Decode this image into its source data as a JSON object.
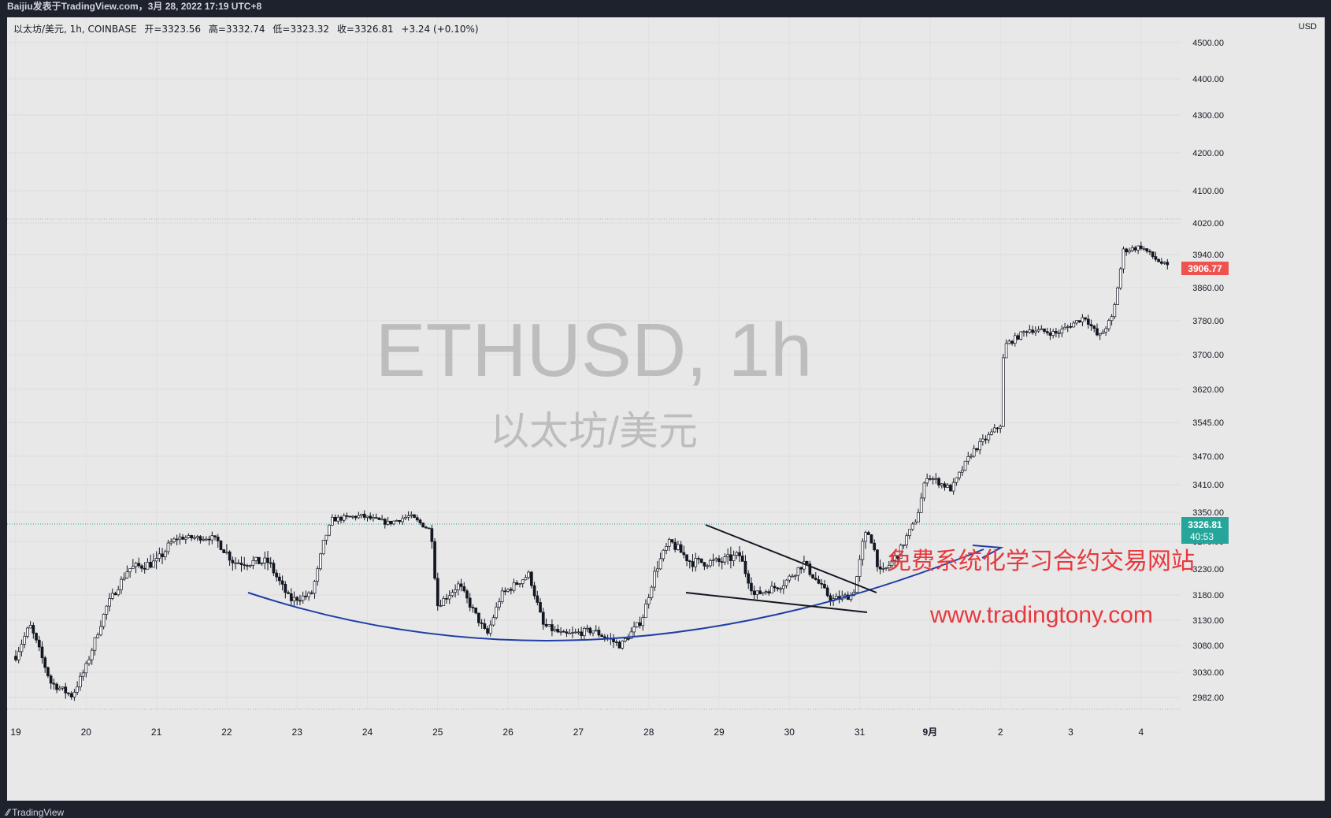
{
  "header": {
    "publisher": "Baijiu发表于TradingView.com，3月 28, 2022 17:19 UTC+8"
  },
  "legend": {
    "symbol": "以太坊/美元, 1h, COINBASE",
    "open": "开=3323.56",
    "high": "高=3332.74",
    "low": "低=3323.32",
    "close": "收=3326.81",
    "change": "+3.24 (+0.10%)"
  },
  "watermark": {
    "symbol": "ETHUSD, 1h",
    "name": "以太坊/美元"
  },
  "price_scale": {
    "currency": "USD",
    "ticks": [
      "4500.00",
      "4400.00",
      "4300.00",
      "4200.00",
      "4100.00",
      "4020.00",
      "3940.00",
      "3860.00",
      "3780.00",
      "3700.00",
      "3620.00",
      "3545.00",
      "3470.00",
      "3410.00",
      "3350.00",
      "3270.00",
      "3230.00",
      "3180.00",
      "3130.00",
      "3080.00",
      "3030.00",
      "2982.00"
    ],
    "last_price_label": "3906.77",
    "current_price_label": "3326.81",
    "countdown": "40:53"
  },
  "time_scale": {
    "ticks": [
      "19",
      "20",
      "21",
      "22",
      "23",
      "24",
      "25",
      "26",
      "27",
      "28",
      "29",
      "30",
      "31",
      "9月",
      "2",
      "3",
      "4"
    ]
  },
  "annotations": {
    "promo_text": "免费系统化学习合约交易网站",
    "url_text": "www.tradingtony.com"
  },
  "footer": {
    "brand": "TradingView"
  },
  "colors": {
    "background": "#e8e8e8",
    "frame": "#1e222d",
    "candle": "#131722",
    "curve": "#1f3fa6",
    "promo": "#e8383d",
    "last_price_bg": "#ef5350",
    "current_price_bg": "#26a69a"
  },
  "chart_data": {
    "type": "candlestick",
    "symbol": "ETHUSD",
    "interval": "1h",
    "x_label_positions": [
      "19",
      "20",
      "21",
      "22",
      "23",
      "24",
      "25",
      "26",
      "27",
      "28",
      "29",
      "30",
      "31",
      "9月",
      "2",
      "3",
      "4"
    ],
    "path_key_points": [
      {
        "day": 19.0,
        "price": 3060
      },
      {
        "day": 19.2,
        "price": 3120
      },
      {
        "day": 19.5,
        "price": 3010
      },
      {
        "day": 19.8,
        "price": 2985
      },
      {
        "day": 20.0,
        "price": 3040
      },
      {
        "day": 20.3,
        "price": 3160
      },
      {
        "day": 20.6,
        "price": 3230
      },
      {
        "day": 21.0,
        "price": 3240
      },
      {
        "day": 21.3,
        "price": 3280
      },
      {
        "day": 21.8,
        "price": 3280
      },
      {
        "day": 22.1,
        "price": 3240
      },
      {
        "day": 22.6,
        "price": 3240
      },
      {
        "day": 22.9,
        "price": 3170
      },
      {
        "day": 23.2,
        "price": 3180
      },
      {
        "day": 23.5,
        "price": 3330
      },
      {
        "day": 23.9,
        "price": 3340
      },
      {
        "day": 24.3,
        "price": 3320
      },
      {
        "day": 24.6,
        "price": 3340
      },
      {
        "day": 24.9,
        "price": 3300
      },
      {
        "day": 25.0,
        "price": 3160
      },
      {
        "day": 25.3,
        "price": 3200
      },
      {
        "day": 25.7,
        "price": 3100
      },
      {
        "day": 25.9,
        "price": 3180
      },
      {
        "day": 26.3,
        "price": 3220
      },
      {
        "day": 26.5,
        "price": 3120
      },
      {
        "day": 26.8,
        "price": 3100
      },
      {
        "day": 27.2,
        "price": 3110
      },
      {
        "day": 27.6,
        "price": 3080
      },
      {
        "day": 27.9,
        "price": 3130
      },
      {
        "day": 28.1,
        "price": 3230
      },
      {
        "day": 28.3,
        "price": 3270
      },
      {
        "day": 28.6,
        "price": 3240
      },
      {
        "day": 29.0,
        "price": 3240
      },
      {
        "day": 29.3,
        "price": 3250
      },
      {
        "day": 29.5,
        "price": 3180
      },
      {
        "day": 29.9,
        "price": 3200
      },
      {
        "day": 30.2,
        "price": 3240
      },
      {
        "day": 30.6,
        "price": 3170
      },
      {
        "day": 30.9,
        "price": 3180
      },
      {
        "day": 31.1,
        "price": 3300
      },
      {
        "day": 31.3,
        "price": 3220
      },
      {
        "day": 31.6,
        "price": 3260
      },
      {
        "day": 31.8,
        "price": 3330
      },
      {
        "day": 31.95,
        "price": 3430
      },
      {
        "day": 32.3,
        "price": 3400
      },
      {
        "day": 32.6,
        "price": 3480
      },
      {
        "day": 33.0,
        "price": 3540
      },
      {
        "day": 33.05,
        "price": 3720
      },
      {
        "day": 33.4,
        "price": 3760
      },
      {
        "day": 33.8,
        "price": 3750
      },
      {
        "day": 34.2,
        "price": 3790
      },
      {
        "day": 34.4,
        "price": 3740
      },
      {
        "day": 34.6,
        "price": 3790
      },
      {
        "day": 34.75,
        "price": 3950
      },
      {
        "day": 35.0,
        "price": 3960
      },
      {
        "day": 35.2,
        "price": 3930
      },
      {
        "day": 35.4,
        "price": 3907
      }
    ]
  }
}
